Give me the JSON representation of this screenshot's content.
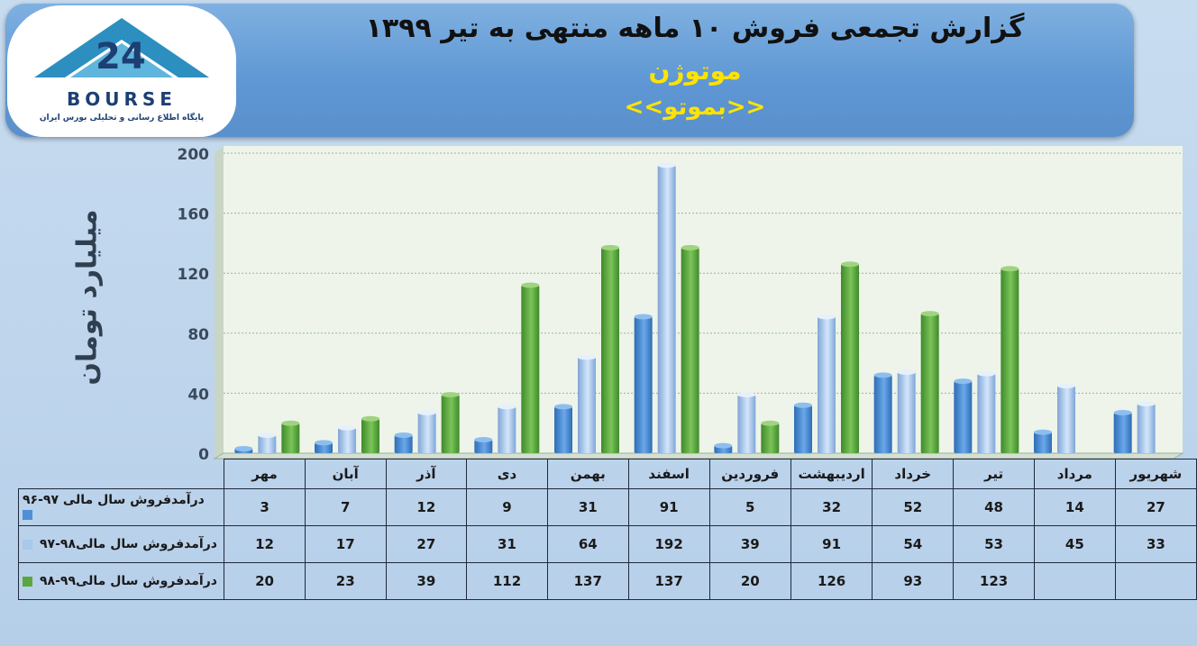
{
  "header": {
    "title": "گزارش تجمعی فروش ۱۰ ماهه منتهی به تیر ۱۳۹۹",
    "company": "موتوژن",
    "symbol": "<<بموتو>>"
  },
  "logo": {
    "text": "BOURSE",
    "subtitle": "پایگاه اطلاع رسانی و تحلیلی بورس ایران"
  },
  "colors": {
    "series1": "#4f8fd6",
    "series2": "#a9c8ec",
    "series3": "#5aa73f",
    "header": "#5e97d4",
    "logo": "#2c8fc0"
  },
  "chart_data": {
    "type": "bar",
    "ylabel": "میلیارد تومان",
    "ylim": [
      0,
      200
    ],
    "yticks": [
      "0",
      "40",
      "80",
      "120",
      "160",
      "200"
    ],
    "categories": [
      "مهر",
      "آبان",
      "آذر",
      "دی",
      "بهمن",
      "اسفند",
      "فروردین",
      "اردیبهشت",
      "خرداد",
      "تیر",
      "مرداد",
      "شهریور"
    ],
    "series": [
      {
        "name": "درآمدفروش سال مالی ۹۷-۹۶",
        "values": [
          3,
          7,
          12,
          9,
          31,
          91,
          5,
          32,
          52,
          48,
          14,
          27
        ],
        "labels": [
          "3",
          "7",
          "12",
          "9",
          "31",
          "91",
          "5",
          "32",
          "52",
          "48",
          "14",
          "27"
        ]
      },
      {
        "name": "درآمدفروش سال مالی۹۸-۹۷",
        "values": [
          12,
          17,
          27,
          31,
          64,
          192,
          39,
          91,
          54,
          53,
          45,
          33
        ],
        "labels": [
          "12",
          "17",
          "27",
          "31",
          "64",
          "192",
          "39",
          "91",
          "54",
          "53",
          "45",
          "33"
        ]
      },
      {
        "name": "درآمدفروش سال مالی۹۹-۹۸",
        "values": [
          20,
          23,
          39,
          112,
          137,
          137,
          20,
          126,
          93,
          123,
          null,
          null
        ],
        "labels": [
          "20",
          "23",
          "39",
          "112",
          "137",
          "137",
          "20",
          "126",
          "93",
          "123",
          "",
          ""
        ]
      }
    ]
  }
}
